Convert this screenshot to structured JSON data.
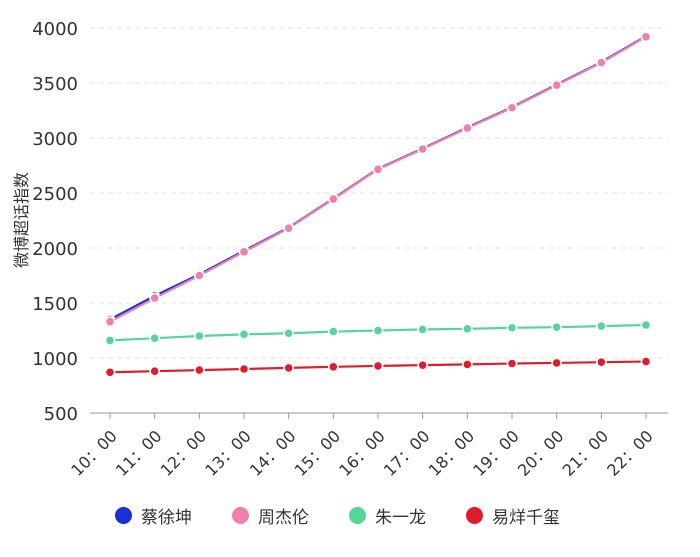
{
  "chart_data": {
    "type": "line",
    "ylabel": "微博超话指数",
    "xlabel": "",
    "title": "",
    "ylim": [
      500,
      4000
    ],
    "yticks": [
      500,
      1000,
      1500,
      2000,
      2500,
      3000,
      3500,
      4000
    ],
    "categories": [
      "10：00",
      "11：00",
      "12：00",
      "13：00",
      "14：00",
      "15：00",
      "16：00",
      "17：00",
      "18：00",
      "19：00",
      "20：00",
      "21：00",
      "22：00"
    ],
    "grid": "horizontal dashed",
    "legend_position": "bottom",
    "series": [
      {
        "name": "蔡徐坤",
        "color": "#1a2fd6",
        "values": [
          1350,
          1565,
          1760,
          1975,
          2185,
          2450,
          2720,
          2905,
          3095,
          3280,
          3485,
          3690,
          3925
        ]
      },
      {
        "name": "周杰伦",
        "color": "#f07fab",
        "values": [
          1330,
          1545,
          1750,
          1965,
          2180,
          2445,
          2715,
          2900,
          3090,
          3275,
          3480,
          3685,
          3920
        ]
      },
      {
        "name": "朱一龙",
        "color": "#55d696",
        "values": [
          1160,
          1180,
          1200,
          1215,
          1225,
          1240,
          1250,
          1260,
          1265,
          1275,
          1280,
          1290,
          1300
        ]
      },
      {
        "name": "易烊千玺",
        "color": "#dd1c2d",
        "values": [
          870,
          880,
          890,
          900,
          910,
          920,
          928,
          935,
          942,
          950,
          955,
          962,
          968
        ]
      }
    ]
  }
}
